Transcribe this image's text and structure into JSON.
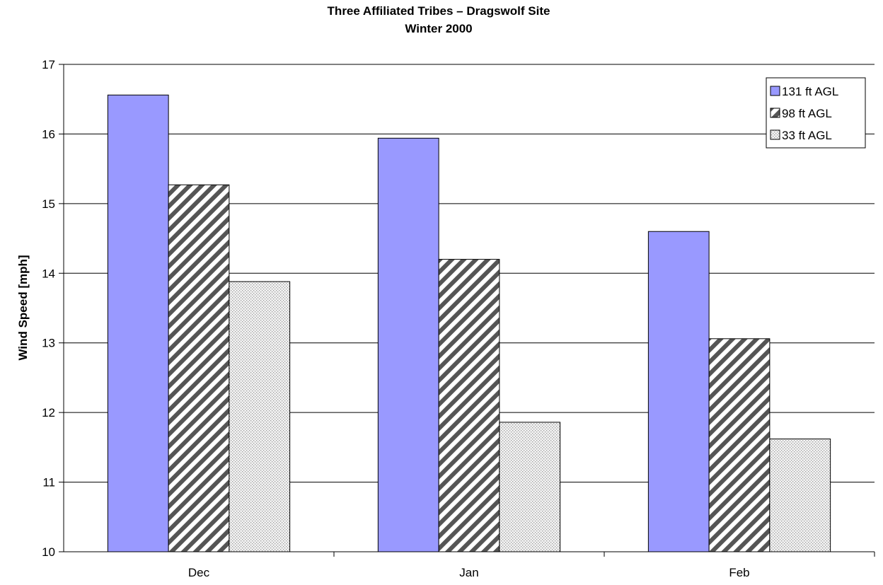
{
  "chart_data": {
    "type": "bar",
    "title": "Three Affiliated Tribes – Dragswolf Site",
    "subtitle": "Winter 2000",
    "xlabel": "",
    "ylabel": "Wind Speed [mph]",
    "ylim": [
      10,
      17
    ],
    "yticks": [
      10,
      11,
      12,
      13,
      14,
      15,
      16,
      17
    ],
    "grid": true,
    "legend_position": "top-right",
    "categories": [
      "Dec",
      "Jan",
      "Feb"
    ],
    "series": [
      {
        "name": "131 ft AGL",
        "values": [
          16.56,
          15.94,
          14.6
        ],
        "color": "#9999ff",
        "pattern": "solid"
      },
      {
        "name": "98 ft AGL",
        "values": [
          15.27,
          14.2,
          13.06
        ],
        "color": "#333333",
        "pattern": "diagonal-stripes"
      },
      {
        "name": "33 ft AGL",
        "values": [
          13.88,
          11.86,
          11.62
        ],
        "color": "#aaaaaa",
        "pattern": "dots"
      }
    ]
  }
}
